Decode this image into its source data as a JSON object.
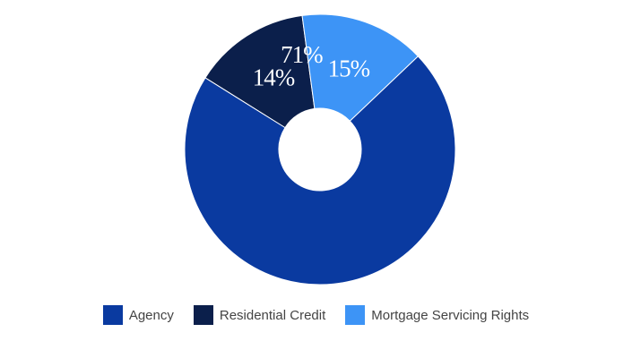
{
  "chart_data": {
    "type": "pie",
    "donut": true,
    "title": "",
    "legend_position": "bottom",
    "slices": [
      {
        "name": "Residential Credit",
        "value": 14,
        "label": "14%",
        "color": "#0b1f4b"
      },
      {
        "name": "Mortgage Servicing Rights",
        "value": 15,
        "label": "15%",
        "color": "#3d94f6"
      },
      {
        "name": "Agency",
        "value": 71,
        "label": "71%",
        "color": "#0a3aa0"
      }
    ],
    "legend": [
      {
        "name": "Agency",
        "color": "#0a3aa0"
      },
      {
        "name": "Residential Credit",
        "color": "#0b1f4b"
      },
      {
        "name": "Mortgage Servicing Rights",
        "color": "#3d94f6"
      }
    ]
  }
}
